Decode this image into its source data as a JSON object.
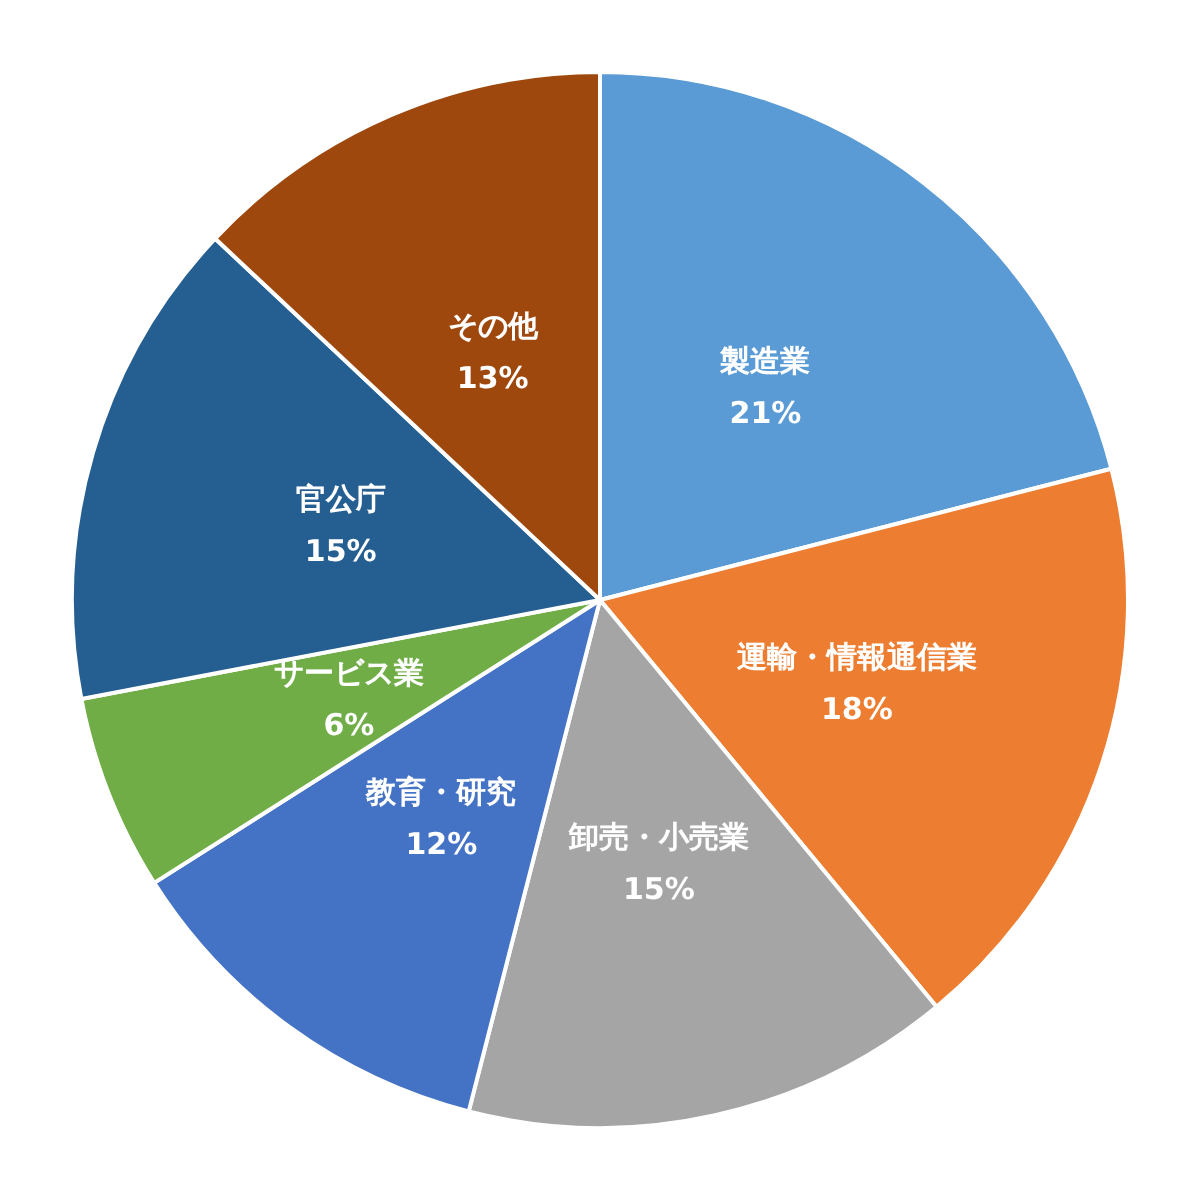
{
  "chart_data": {
    "type": "pie",
    "categories": [
      "製造業",
      "運輸・情報通信業",
      "卸売・小売業",
      "教育・研究",
      "サービス業",
      "官公庁",
      "その他"
    ],
    "values": [
      21,
      18,
      15,
      12,
      6,
      15,
      13
    ],
    "value_labels": [
      "21%",
      "18%",
      "15%",
      "12%",
      "6%",
      "15%",
      "13%"
    ],
    "colors": [
      "#5b9bd5",
      "#ed7d31",
      "#a5a5a5",
      "#4472c4",
      "#70ad47",
      "#255e91",
      "#9e480e"
    ],
    "legend": false
  }
}
